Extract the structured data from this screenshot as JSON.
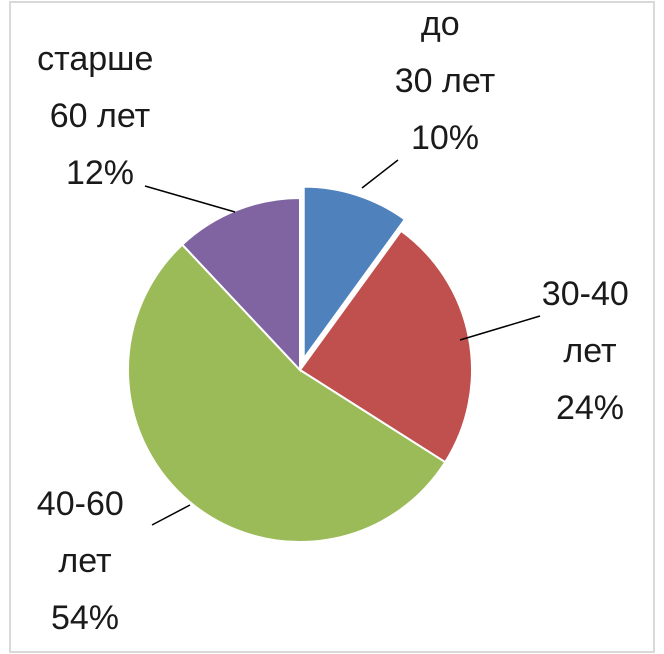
{
  "chart_data": {
    "type": "pie",
    "categories": [
      "до 30 лет",
      "30-40 лет",
      "40-60 лет",
      "старше 60 лет"
    ],
    "values": [
      10,
      24,
      54,
      12
    ],
    "value_labels": [
      "10%",
      "24%",
      "54%",
      "12%"
    ],
    "colors": [
      "#4f81bd",
      "#c0504d",
      "#9bbb59",
      "#8064a2"
    ],
    "exploded": [
      true,
      false,
      false,
      false
    ]
  }
}
